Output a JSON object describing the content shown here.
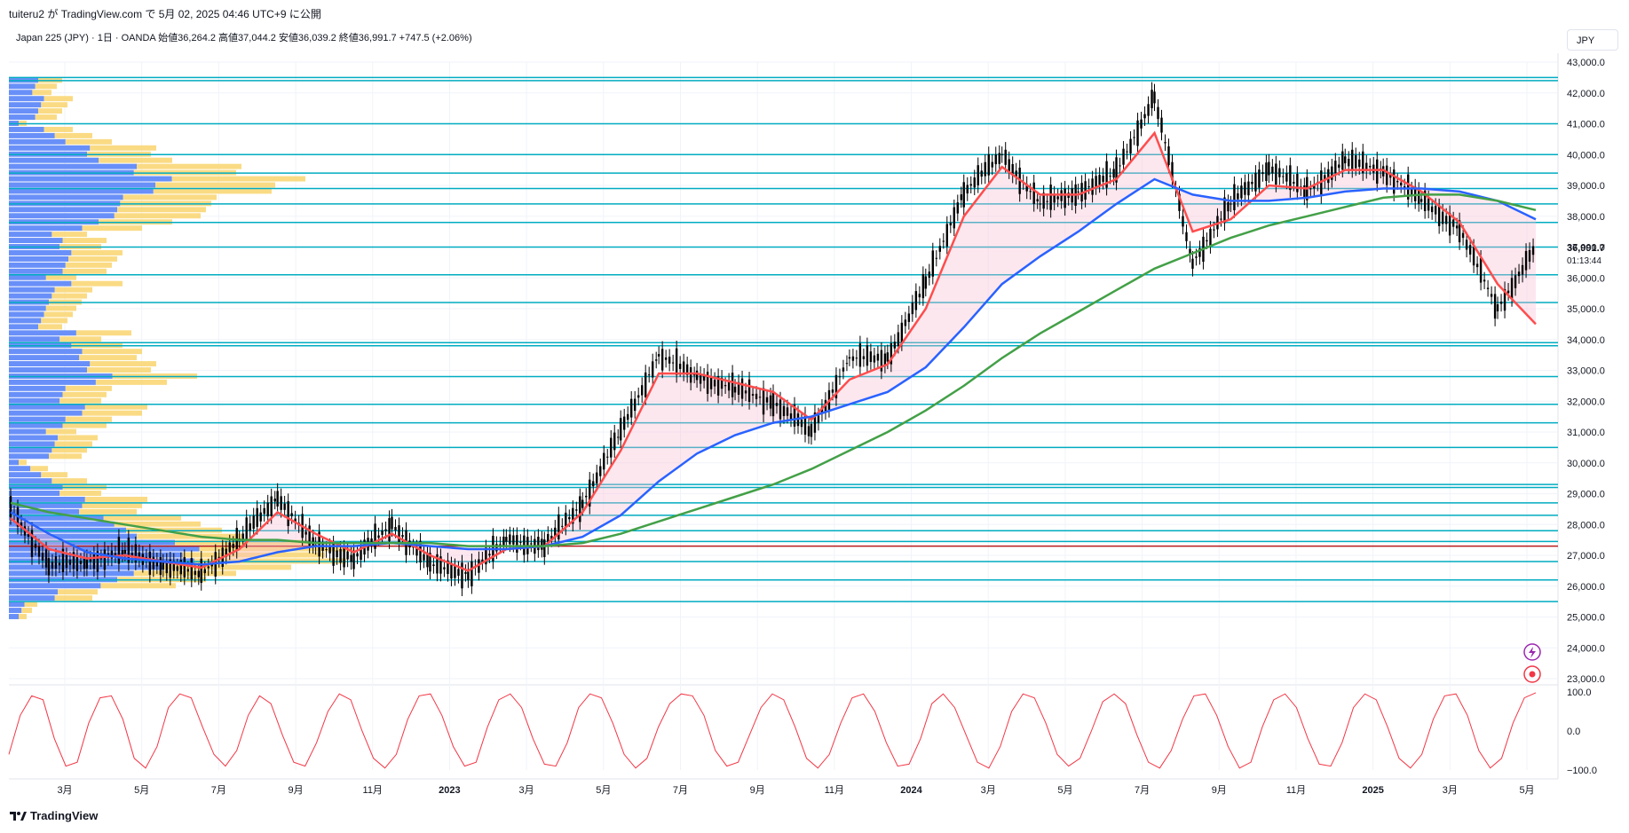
{
  "header": {
    "publish_text": "tuiteru2 が TradingView.com で 5月 02, 2025 04:46 UTC+9 に公開",
    "symbol_info": "Japan 225 (JPY) · 1日 · OANDA  始値36,264.2  高値37,044.2  安値36,039.2  終値36,991.7  +747.5 (+2.06%)"
  },
  "currency_button": "JPY",
  "footer": {
    "logo_text": "TradingView",
    "logo_icon": "tradingview-logo-icon"
  },
  "last_price": {
    "value": "36,991.7",
    "countdown": "01:13:44"
  },
  "icons": [
    "lightning-icon",
    "target-icon"
  ],
  "colors": {
    "accent_red": "#f23645",
    "ema_red": "#ff4d4d",
    "ma_blue": "#2962ff",
    "ma_green": "#43a047",
    "level_cyan": "#00acc1",
    "level_red": "#b71c1c",
    "vp_blue": "#4f7cf7",
    "vp_yellow": "#f9d56e"
  },
  "chart_data": [
    {
      "type": "line",
      "subtype": "candlestick_with_overlays",
      "title": "",
      "ylim": [
        23000,
        43000
      ],
      "y_ticks": [
        "43,000.0",
        "42,000.0",
        "41,000.0",
        "40,000.0",
        "39,000.0",
        "38,000.0",
        "37,000.0",
        "36,000.0",
        "35,000.0",
        "34,000.0",
        "33,000.0",
        "32,000.0",
        "31,000.0",
        "30,000.0",
        "29,000.0",
        "28,000.0",
        "27,000.0",
        "26,000.0",
        "25,000.0",
        "24,000.0",
        "23,000.0"
      ],
      "x_ticks": [
        "3月",
        "5月",
        "7月",
        "9月",
        "11月",
        "2023",
        "3月",
        "5月",
        "7月",
        "9月",
        "11月",
        "2024",
        "3月",
        "5月",
        "7月",
        "9月",
        "11月",
        "2025",
        "3月",
        "5月"
      ],
      "horizontal_levels": [
        42500,
        42400,
        41000,
        40000,
        39400,
        38900,
        38400,
        37800,
        37000,
        36100,
        35200,
        33900,
        33800,
        32800,
        31900,
        31300,
        30500,
        29300,
        29200,
        28700,
        28300,
        27800,
        27450,
        26800,
        26200,
        25500
      ],
      "red_level": 27300,
      "series": [
        {
          "name": "",
          "kind": "price_close",
          "x": [
            "2022-01",
            "2022-02",
            "2022-03",
            "2022-04",
            "2022-05",
            "2022-06",
            "2022-07",
            "2022-08",
            "2022-09",
            "2022-10",
            "2022-11",
            "2022-12",
            "2023-01",
            "2023-02",
            "2023-03",
            "2023-04",
            "2023-05",
            "2023-06",
            "2023-07",
            "2023-08",
            "2023-09",
            "2023-10",
            "2023-11",
            "2023-12",
            "2024-01",
            "2024-02",
            "2024-03",
            "2024-04",
            "2024-05",
            "2024-06",
            "2024-07",
            "2024-08",
            "2024-09",
            "2024-10",
            "2024-11",
            "2024-12",
            "2025-01",
            "2025-02",
            "2025-03",
            "2025-04",
            "2025-05"
          ],
          "values": [
            28500,
            26700,
            26800,
            27100,
            26700,
            26400,
            27500,
            28900,
            27300,
            26900,
            28000,
            26700,
            26400,
            27500,
            27300,
            28700,
            31000,
            33500,
            32800,
            32400,
            32000,
            31000,
            33400,
            33400,
            35800,
            38800,
            40000,
            38400,
            38800,
            39400,
            41900,
            36500,
            38400,
            39600,
            38800,
            39800,
            39500,
            38500,
            37600,
            35000,
            36991
          ]
        },
        {
          "name": "",
          "kind": "moving_average_short",
          "color": "red",
          "values": [
            28200,
            27200,
            26900,
            27000,
            26800,
            26600,
            27200,
            28400,
            27700,
            27100,
            27700,
            27000,
            26500,
            27200,
            27300,
            28400,
            30400,
            32900,
            32900,
            32600,
            32300,
            31400,
            32700,
            33200,
            35000,
            38000,
            39600,
            38700,
            38700,
            39200,
            40700,
            37500,
            37900,
            39000,
            38900,
            39500,
            39500,
            38800,
            37800,
            35800,
            34500
          ]
        },
        {
          "name": "",
          "kind": "moving_average_mid",
          "color": "blue",
          "values": [
            28400,
            27700,
            27100,
            26900,
            26800,
            26700,
            26800,
            27100,
            27300,
            27300,
            27400,
            27300,
            27200,
            27200,
            27300,
            27600,
            28300,
            29400,
            30300,
            30900,
            31300,
            31500,
            31900,
            32300,
            33100,
            34400,
            35800,
            36700,
            37500,
            38400,
            39200,
            38700,
            38500,
            38500,
            38600,
            38800,
            38900,
            38900,
            38800,
            38500,
            37900
          ]
        },
        {
          "name": "",
          "kind": "moving_average_long",
          "color": "green",
          "values": [
            28700,
            28400,
            28200,
            28000,
            27800,
            27600,
            27500,
            27500,
            27400,
            27400,
            27400,
            27400,
            27300,
            27300,
            27300,
            27400,
            27700,
            28100,
            28500,
            28900,
            29300,
            29800,
            30400,
            31000,
            31700,
            32500,
            33400,
            34200,
            34900,
            35600,
            36300,
            36800,
            37300,
            37700,
            38000,
            38300,
            38600,
            38700,
            38700,
            38500,
            38200
          ]
        }
      ]
    },
    {
      "type": "line",
      "subtype": "oscillator",
      "title": "",
      "ylim": [
        -100,
        100
      ],
      "y_ticks": [
        "100.0",
        "0.0",
        "−100.0"
      ],
      "series": [
        {
          "name": "",
          "color": "red",
          "values": [
            -60,
            40,
            90,
            80,
            -20,
            -90,
            -80,
            20,
            85,
            90,
            30,
            -70,
            -95,
            -40,
            60,
            95,
            85,
            10,
            -60,
            -90,
            -50,
            40,
            90,
            70,
            -10,
            -80,
            -90,
            -30,
            50,
            95,
            80,
            0,
            -70,
            -95,
            -60,
            30,
            90,
            95,
            40,
            -40,
            -90,
            -80,
            10,
            80,
            95,
            60,
            -20,
            -85,
            -90,
            -30,
            60,
            95,
            85,
            20,
            -60,
            -95,
            -70,
            10,
            70,
            95,
            90,
            40,
            -50,
            -90,
            -80,
            -10,
            60,
            95,
            80,
            10,
            -70,
            -95,
            -60,
            20,
            85,
            95,
            50,
            -30,
            -90,
            -85,
            -20,
            70,
            95,
            60,
            -10,
            -80,
            -95,
            -40,
            50,
            95,
            85,
            20,
            -60,
            -90,
            -70,
            0,
            75,
            95,
            70,
            -10,
            -80,
            -95,
            -50,
            30,
            90,
            95,
            40,
            -40,
            -95,
            -80,
            10,
            80,
            95,
            60,
            -20,
            -85,
            -90,
            -30,
            60,
            95,
            80,
            10,
            -70,
            -95,
            -60,
            30,
            90,
            95,
            40,
            -50,
            -95,
            -70,
            20,
            85,
            98
          ]
        }
      ]
    }
  ]
}
